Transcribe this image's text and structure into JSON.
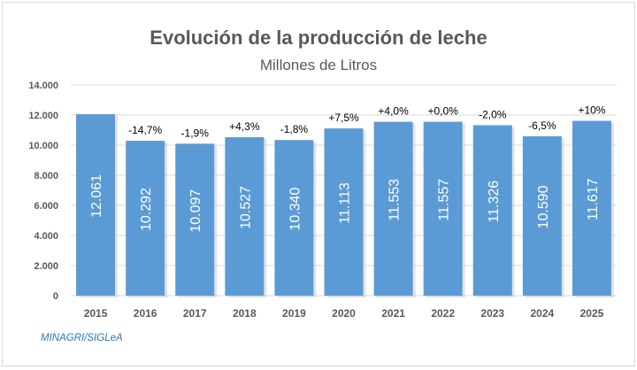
{
  "chart_data": {
    "type": "bar",
    "title": "Evolución de la producción de leche",
    "subtitle": "Millones de Litros",
    "categories": [
      "2015",
      "2016",
      "2017",
      "2018",
      "2019",
      "2020",
      "2021",
      "2022",
      "2023",
      "2024",
      "2025"
    ],
    "values": [
      12061,
      10292,
      10097,
      10527,
      10340,
      11113,
      11553,
      11557,
      11326,
      10590,
      11617
    ],
    "value_labels": [
      "12.061",
      "10.292",
      "10.097",
      "10.527",
      "10.340",
      "11.113",
      "11.553",
      "11.557",
      "11.326",
      "10.590",
      "11.617"
    ],
    "change_labels": [
      "",
      "-14,7%",
      "-1,9%",
      "+4,3%",
      "-1,8%",
      "+7,5%",
      "+4,0%",
      "+0,0%",
      "-2,0%",
      "-6,5%",
      "+10%"
    ],
    "yticks": [
      "0",
      "2.000",
      "4.000",
      "6.000",
      "8.000",
      "10.000",
      "12.000",
      "14.000"
    ],
    "ylim": [
      0,
      14000
    ],
    "grid": true,
    "bar_color": "#5b9bd5",
    "source": "MINAGRI/SIGLeA"
  }
}
